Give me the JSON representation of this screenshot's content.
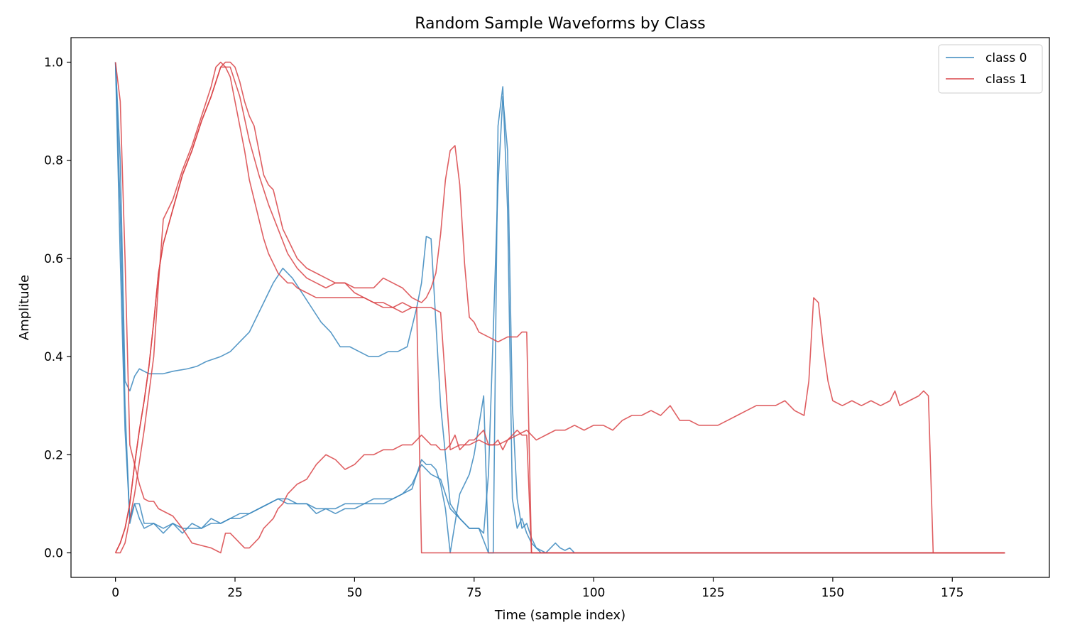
{
  "chart_data": {
    "type": "line",
    "title": "Random Sample Waveforms by Class",
    "xlabel": "Time (sample index)",
    "ylabel": "Amplitude",
    "xlim": [
      -9.3,
      195.3
    ],
    "ylim": [
      -0.05,
      1.05
    ],
    "xticks": [
      0,
      25,
      50,
      75,
      100,
      125,
      150,
      175
    ],
    "yticks": [
      0.0,
      0.2,
      0.4,
      0.6,
      0.8,
      1.0
    ],
    "xtick_labels": [
      "0",
      "25",
      "50",
      "75",
      "100",
      "125",
      "150",
      "175"
    ],
    "ytick_labels": [
      "0.0",
      "0.2",
      "0.4",
      "0.6",
      "0.8",
      "1.0"
    ],
    "grid": false,
    "legend": {
      "placement": "top-right",
      "entries": [
        {
          "label": "class 0",
          "color": "#3a87bd"
        },
        {
          "label": "class 1",
          "color": "#d94347"
        }
      ]
    },
    "series": [
      {
        "class": "class 0",
        "color": "#3a87bd",
        "x": [
          0,
          1,
          2,
          3,
          4,
          5,
          6,
          7,
          8,
          10,
          12,
          15,
          17,
          19,
          22,
          24,
          26,
          28,
          30,
          33,
          35,
          37,
          39,
          41,
          43,
          45,
          47,
          49,
          51,
          53,
          55,
          57,
          59,
          61,
          63,
          64,
          65,
          66,
          68,
          70,
          72,
          74,
          76,
          78,
          80,
          81,
          82,
          84,
          86,
          88,
          90,
          92,
          94,
          96,
          100,
          120,
          150,
          186
        ],
        "y": [
          1.0,
          0.8,
          0.35,
          0.33,
          0.36,
          0.375,
          0.37,
          0.365,
          0.365,
          0.365,
          0.37,
          0.375,
          0.38,
          0.39,
          0.4,
          0.41,
          0.43,
          0.45,
          0.49,
          0.55,
          0.58,
          0.56,
          0.53,
          0.5,
          0.47,
          0.45,
          0.42,
          0.42,
          0.41,
          0.4,
          0.4,
          0.41,
          0.41,
          0.42,
          0.5,
          0.55,
          0.645,
          0.64,
          0.3,
          0.1,
          0.07,
          0.05,
          0.05,
          0.0,
          0.0,
          0.0,
          0.0,
          0.0,
          0.0,
          0.0,
          0.0,
          0.0,
          0.0,
          0.0,
          0.0,
          0.0,
          0.0,
          0.0
        ]
      },
      {
        "class": "class 0",
        "color": "#3a87bd",
        "x": [
          0,
          1,
          2,
          3,
          4,
          5,
          6,
          8,
          10,
          12,
          14,
          16,
          18,
          20,
          22,
          24,
          26,
          28,
          30,
          32,
          34,
          36,
          38,
          40,
          42,
          44,
          46,
          48,
          50,
          52,
          54,
          56,
          58,
          60,
          62,
          64,
          65,
          66,
          67,
          68,
          69,
          70,
          71,
          72,
          73,
          74,
          75,
          76,
          77,
          78,
          79,
          80,
          81,
          82,
          83,
          84,
          85,
          86,
          87,
          88,
          89,
          90,
          91,
          92,
          93,
          94,
          95,
          96,
          97,
          100,
          120,
          150,
          186
        ],
        "y": [
          1.0,
          0.6,
          0.25,
          0.07,
          0.1,
          0.1,
          0.06,
          0.06,
          0.05,
          0.06,
          0.05,
          0.05,
          0.05,
          0.06,
          0.06,
          0.07,
          0.08,
          0.08,
          0.09,
          0.1,
          0.11,
          0.11,
          0.1,
          0.1,
          0.09,
          0.09,
          0.09,
          0.1,
          0.1,
          0.1,
          0.11,
          0.11,
          0.11,
          0.12,
          0.13,
          0.19,
          0.18,
          0.18,
          0.17,
          0.14,
          0.09,
          0.0,
          0.06,
          0.12,
          0.14,
          0.16,
          0.2,
          0.26,
          0.32,
          0.0,
          0.0,
          0.87,
          0.95,
          0.7,
          0.11,
          0.05,
          0.07,
          0.04,
          0.02,
          0.01,
          0.0,
          0.0,
          0.01,
          0.02,
          0.01,
          0.005,
          0.01,
          0.0,
          0.0,
          0.0,
          0.0,
          0.0,
          0.0
        ]
      },
      {
        "class": "class 0",
        "color": "#3a87bd",
        "x": [
          0,
          1,
          2,
          3,
          4,
          5,
          6,
          8,
          10,
          12,
          14,
          16,
          18,
          20,
          22,
          24,
          26,
          28,
          30,
          32,
          34,
          36,
          38,
          40,
          42,
          44,
          46,
          48,
          50,
          52,
          54,
          56,
          58,
          60,
          62,
          64,
          66,
          68,
          70,
          72,
          74,
          76,
          77,
          78,
          79,
          80,
          81,
          82,
          83,
          84,
          85,
          86,
          87,
          88,
          89,
          90,
          92,
          95,
          100,
          120,
          150,
          186
        ],
        "y": [
          1.0,
          0.7,
          0.3,
          0.06,
          0.1,
          0.07,
          0.05,
          0.06,
          0.04,
          0.06,
          0.04,
          0.06,
          0.05,
          0.07,
          0.06,
          0.07,
          0.07,
          0.08,
          0.09,
          0.1,
          0.11,
          0.1,
          0.1,
          0.1,
          0.08,
          0.09,
          0.08,
          0.09,
          0.09,
          0.1,
          0.1,
          0.1,
          0.11,
          0.12,
          0.14,
          0.18,
          0.16,
          0.15,
          0.09,
          0.07,
          0.05,
          0.05,
          0.04,
          0.16,
          0.45,
          0.75,
          0.93,
          0.82,
          0.3,
          0.11,
          0.05,
          0.06,
          0.03,
          0.01,
          0.005,
          0.0,
          0.0,
          0.0,
          0.0,
          0.0,
          0.0,
          0.0
        ]
      },
      {
        "class": "class 1",
        "color": "#d94347",
        "x": [
          0,
          1,
          2,
          3,
          4,
          5,
          6,
          7,
          8,
          9,
          10,
          12,
          14,
          16,
          18,
          20,
          21,
          22,
          23,
          24,
          25,
          26,
          27,
          28,
          29,
          30,
          31,
          32,
          33,
          34,
          35,
          36,
          38,
          40,
          42,
          44,
          46,
          48,
          50,
          52,
          54,
          56,
          58,
          60,
          62,
          63,
          64,
          65,
          66,
          67,
          68,
          69,
          70,
          71,
          72,
          73,
          74,
          75,
          76,
          77,
          78,
          79,
          80,
          81,
          82,
          83,
          84,
          85,
          86,
          87,
          88,
          100,
          150,
          186
        ],
        "y": [
          1.0,
          0.92,
          0.6,
          0.22,
          0.18,
          0.14,
          0.11,
          0.105,
          0.105,
          0.09,
          0.085,
          0.075,
          0.05,
          0.02,
          0.015,
          0.01,
          0.005,
          0.0,
          0.04,
          0.04,
          0.03,
          0.02,
          0.01,
          0.01,
          0.02,
          0.03,
          0.05,
          0.06,
          0.07,
          0.09,
          0.1,
          0.12,
          0.14,
          0.15,
          0.18,
          0.2,
          0.19,
          0.17,
          0.18,
          0.2,
          0.2,
          0.21,
          0.21,
          0.22,
          0.22,
          0.23,
          0.24,
          0.23,
          0.22,
          0.22,
          0.21,
          0.21,
          0.22,
          0.24,
          0.21,
          0.22,
          0.23,
          0.23,
          0.24,
          0.25,
          0.22,
          0.22,
          0.23,
          0.21,
          0.23,
          0.24,
          0.25,
          0.24,
          0.24,
          0.0,
          0.0,
          0.0,
          0.0,
          0.0
        ]
      },
      {
        "class": "class 1",
        "color": "#d94347",
        "x": [
          0,
          1,
          2,
          4,
          6,
          8,
          9,
          10,
          12,
          14,
          16,
          18,
          20,
          21,
          22,
          23,
          24,
          25,
          26,
          27,
          28,
          29,
          30,
          31,
          32,
          33,
          34,
          35,
          36,
          37,
          38,
          40,
          42,
          44,
          46,
          48,
          50,
          52,
          54,
          56,
          58,
          60,
          62,
          63,
          64,
          65,
          100,
          150,
          186
        ],
        "y": [
          0.0,
          0.0,
          0.02,
          0.12,
          0.25,
          0.4,
          0.55,
          0.68,
          0.72,
          0.78,
          0.83,
          0.89,
          0.95,
          0.99,
          1.0,
          0.99,
          0.97,
          0.92,
          0.87,
          0.82,
          0.76,
          0.72,
          0.68,
          0.64,
          0.61,
          0.59,
          0.57,
          0.56,
          0.55,
          0.55,
          0.54,
          0.53,
          0.52,
          0.52,
          0.52,
          0.52,
          0.52,
          0.52,
          0.51,
          0.51,
          0.5,
          0.51,
          0.5,
          0.5,
          0.0,
          0.0,
          0.0,
          0.0,
          0.0
        ]
      },
      {
        "class": "class 1",
        "color": "#d94347",
        "x": [
          0,
          1,
          2,
          3,
          4,
          5,
          6,
          7,
          8,
          9,
          10,
          12,
          14,
          16,
          18,
          20,
          21,
          22,
          23,
          24,
          25,
          26,
          27,
          28,
          29,
          30,
          31,
          32,
          33,
          34,
          35,
          36,
          37,
          38,
          40,
          42,
          44,
          46,
          48,
          50,
          52,
          54,
          56,
          58,
          60,
          62,
          64,
          65,
          66,
          67,
          68,
          69,
          70,
          71,
          72,
          73,
          74,
          75,
          76,
          78,
          80,
          82,
          84,
          85,
          86,
          87,
          100,
          150,
          186
        ],
        "y": [
          0.0,
          0.02,
          0.05,
          0.1,
          0.18,
          0.25,
          0.31,
          0.38,
          0.47,
          0.57,
          0.63,
          0.7,
          0.77,
          0.82,
          0.88,
          0.93,
          0.96,
          0.99,
          1.0,
          1.0,
          0.99,
          0.96,
          0.92,
          0.89,
          0.87,
          0.82,
          0.77,
          0.75,
          0.74,
          0.7,
          0.66,
          0.64,
          0.62,
          0.6,
          0.58,
          0.57,
          0.56,
          0.55,
          0.55,
          0.54,
          0.54,
          0.54,
          0.56,
          0.55,
          0.54,
          0.52,
          0.51,
          0.52,
          0.54,
          0.57,
          0.65,
          0.76,
          0.82,
          0.83,
          0.75,
          0.59,
          0.48,
          0.47,
          0.45,
          0.44,
          0.43,
          0.44,
          0.44,
          0.45,
          0.45,
          0.0,
          0.0,
          0.0,
          0.0
        ]
      },
      {
        "class": "class 1",
        "color": "#d94347",
        "x": [
          0,
          1,
          2,
          3,
          4,
          5,
          6,
          7,
          8,
          9,
          10,
          12,
          14,
          16,
          18,
          20,
          22,
          24,
          26,
          28,
          30,
          32,
          34,
          36,
          38,
          40,
          42,
          44,
          46,
          48,
          50,
          52,
          54,
          56,
          58,
          60,
          62,
          64,
          66,
          68,
          70,
          72,
          74,
          76,
          78,
          80,
          82,
          84,
          86,
          88,
          90,
          92,
          94,
          96,
          98,
          100,
          102,
          104,
          106,
          108,
          110,
          112,
          114,
          116,
          118,
          120,
          122,
          124,
          126,
          128,
          130,
          132,
          134,
          136,
          138,
          140,
          142,
          144,
          145,
          146,
          147,
          148,
          149,
          150,
          152,
          154,
          156,
          158,
          160,
          162,
          163,
          164,
          166,
          168,
          169,
          170,
          171,
          186
        ],
        "y": [
          0.0,
          0.02,
          0.05,
          0.1,
          0.18,
          0.25,
          0.31,
          0.38,
          0.47,
          0.57,
          0.63,
          0.7,
          0.77,
          0.82,
          0.88,
          0.93,
          0.99,
          0.99,
          0.93,
          0.84,
          0.77,
          0.71,
          0.66,
          0.61,
          0.58,
          0.56,
          0.55,
          0.54,
          0.55,
          0.55,
          0.53,
          0.52,
          0.51,
          0.5,
          0.5,
          0.49,
          0.5,
          0.5,
          0.5,
          0.49,
          0.21,
          0.22,
          0.22,
          0.23,
          0.22,
          0.22,
          0.23,
          0.24,
          0.25,
          0.23,
          0.24,
          0.25,
          0.25,
          0.26,
          0.25,
          0.26,
          0.26,
          0.25,
          0.27,
          0.28,
          0.28,
          0.29,
          0.28,
          0.3,
          0.27,
          0.27,
          0.26,
          0.26,
          0.26,
          0.27,
          0.28,
          0.29,
          0.3,
          0.3,
          0.3,
          0.31,
          0.29,
          0.28,
          0.35,
          0.52,
          0.51,
          0.42,
          0.35,
          0.31,
          0.3,
          0.31,
          0.3,
          0.31,
          0.3,
          0.31,
          0.33,
          0.3,
          0.31,
          0.32,
          0.33,
          0.32,
          0.0,
          0.0
        ]
      }
    ]
  }
}
